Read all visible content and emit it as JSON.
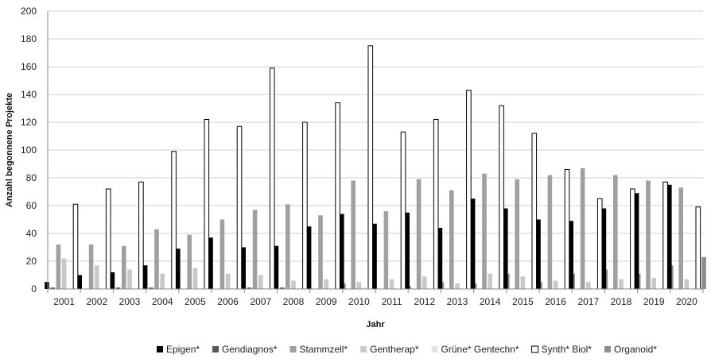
{
  "chart_data": {
    "type": "bar",
    "xlabel": "Jahr",
    "ylabel": "Anzahl begonnene Projekte",
    "ylim": [
      0,
      200
    ],
    "yticks": [
      0,
      20,
      40,
      60,
      80,
      100,
      120,
      140,
      160,
      180,
      200
    ],
    "grid": "horizontal",
    "legend_position": "bottom",
    "categories": [
      "2001",
      "2002",
      "2003",
      "2004",
      "2005",
      "2006",
      "2007",
      "2008",
      "2009",
      "2010",
      "2011",
      "2012",
      "2013",
      "2014",
      "2015",
      "2016",
      "2017",
      "2018",
      "2019",
      "2020"
    ],
    "series": [
      {
        "name": "Epigen*",
        "color": "#000000",
        "outline": false,
        "values": [
          5,
          10,
          12,
          17,
          29,
          37,
          30,
          31,
          45,
          54,
          47,
          55,
          44,
          65,
          58,
          50,
          49,
          58,
          69,
          75
        ]
      },
      {
        "name": "Gendiagnos*",
        "color": "#595959",
        "outline": false,
        "values": [
          1,
          0,
          1,
          1,
          0,
          0,
          1,
          1,
          0,
          0,
          0,
          0,
          0,
          0,
          0,
          0,
          0,
          0,
          0,
          0
        ]
      },
      {
        "name": "Stammzell*",
        "color": "#a0a0a0",
        "outline": false,
        "values": [
          32,
          32,
          31,
          43,
          39,
          50,
          57,
          61,
          53,
          78,
          56,
          79,
          71,
          83,
          79,
          82,
          87,
          82,
          78,
          73
        ]
      },
      {
        "name": "Gentherap*",
        "color": "#c8c8c8",
        "outline": false,
        "values": [
          22,
          17,
          14,
          11,
          15,
          11,
          10,
          6,
          7,
          5,
          7,
          9,
          4,
          11,
          9,
          6,
          5,
          7,
          8,
          7
        ]
      },
      {
        "name": "Grüne* Gentechn*",
        "color": "#e4e4e4",
        "outline": false,
        "values": [
          0,
          0,
          0,
          0,
          0,
          0,
          0,
          0,
          0,
          1,
          0,
          0,
          0,
          0,
          0,
          0,
          0,
          0,
          0,
          0
        ]
      },
      {
        "name": "Synth* Biol*",
        "color": "#ffffff",
        "outline": true,
        "values": [
          61,
          72,
          77,
          99,
          122,
          117,
          159,
          120,
          134,
          175,
          113,
          122,
          143,
          132,
          112,
          86,
          65,
          72,
          77,
          59
        ]
      },
      {
        "name": "Organoid*",
        "color": "#8c8c8c",
        "outline": false,
        "values": [
          0,
          0,
          0,
          0,
          0,
          0,
          0,
          0,
          4,
          0,
          2,
          5,
          4,
          11,
          5,
          11,
          14,
          11,
          17,
          23
        ]
      }
    ]
  }
}
